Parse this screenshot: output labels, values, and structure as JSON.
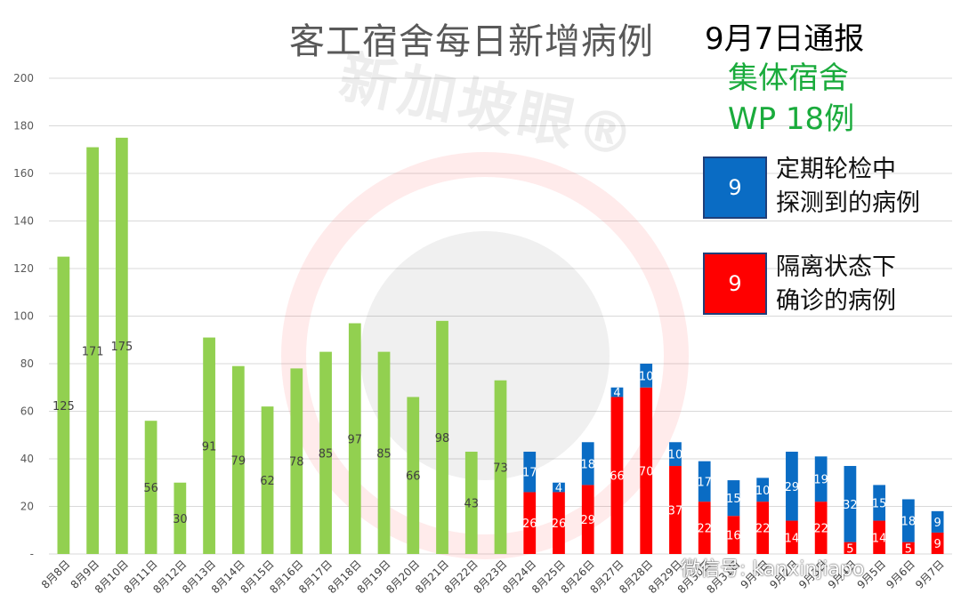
{
  "header": {
    "title": "客工宿舍每日新增病例",
    "notice": "9月7日通报",
    "dorm_label": "集体宿舍",
    "wp_label": "WP 18例"
  },
  "legend": {
    "blue": {
      "value": "9",
      "line1": "定期轮检中",
      "line2": "探测到的病例",
      "color": "#0a6cc4"
    },
    "red": {
      "value": "9",
      "line1": "隔离状态下",
      "line2": "确诊的病例",
      "color": "#ff0000"
    }
  },
  "watermark": {
    "text": "新加坡眼®"
  },
  "footer": {
    "wechat": "微信号: kanxinjiapo"
  },
  "chart_data": {
    "type": "bar",
    "stacked": true,
    "categories": [
      "8月8日",
      "8月9日",
      "8月10日",
      "8月11日",
      "8月12日",
      "8月13日",
      "8月14日",
      "8月15日",
      "8月16日",
      "8月17日",
      "8月18日",
      "8月19日",
      "8月20日",
      "8月21日",
      "8月22日",
      "8月23日",
      "8月24日",
      "8月25日",
      "8月26日",
      "8月27日",
      "8月28日",
      "8月29日",
      "8月30日",
      "8月31日",
      "9月1日",
      "9月2日",
      "9月3日",
      "9月4日",
      "9月5日",
      "9月6日",
      "9月7日"
    ],
    "series": [
      {
        "color": "#92d050",
        "values": [
          125,
          171,
          175,
          56,
          30,
          91,
          79,
          62,
          78,
          85,
          97,
          85,
          66,
          98,
          43,
          73,
          null,
          null,
          null,
          null,
          null,
          null,
          null,
          null,
          null,
          null,
          null,
          null,
          null,
          null,
          null
        ]
      },
      {
        "color": "#ff0000",
        "values": [
          null,
          null,
          null,
          null,
          null,
          null,
          null,
          null,
          null,
          null,
          null,
          null,
          null,
          null,
          null,
          null,
          26,
          26,
          29,
          66,
          70,
          37,
          22,
          16,
          22,
          14,
          22,
          5,
          14,
          5,
          9
        ]
      },
      {
        "color": "#0a6cc4",
        "values": [
          null,
          null,
          null,
          null,
          null,
          null,
          null,
          null,
          null,
          null,
          null,
          null,
          null,
          null,
          null,
          null,
          17,
          4,
          18,
          4,
          10,
          10,
          17,
          15,
          10,
          29,
          19,
          32,
          15,
          18,
          9
        ]
      }
    ],
    "ylim": [
      0,
      200
    ],
    "yticks": [
      0,
      20,
      40,
      60,
      80,
      100,
      120,
      140,
      160,
      180,
      200
    ],
    "ytick_labels": [
      "-",
      "20",
      "40",
      "60",
      "80",
      "100",
      "120",
      "140",
      "160",
      "180",
      "200"
    ],
    "grid": true,
    "legend_position": "right"
  }
}
